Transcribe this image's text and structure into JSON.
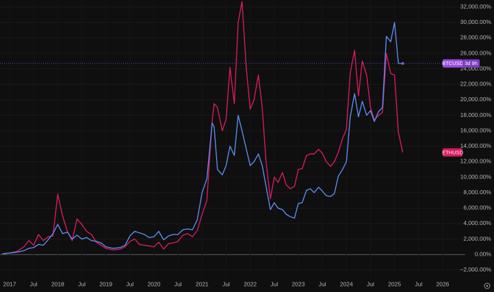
{
  "chart_data": {
    "type": "line",
    "x": [
      2016.85,
      2017.0,
      2017.15,
      2017.3,
      2017.4,
      2017.5,
      2017.6,
      2017.7,
      2017.8,
      2017.9,
      2018.0,
      2018.1,
      2018.2,
      2018.3,
      2018.4,
      2018.5,
      2018.6,
      2018.7,
      2018.8,
      2018.9,
      2019.0,
      2019.15,
      2019.3,
      2019.4,
      2019.5,
      2019.6,
      2019.7,
      2019.8,
      2019.9,
      2020.0,
      2020.1,
      2020.2,
      2020.3,
      2020.4,
      2020.5,
      2020.6,
      2020.7,
      2020.8,
      2020.9,
      2021.0,
      2021.1,
      2021.21,
      2021.25,
      2021.32,
      2021.42,
      2021.5,
      2021.58,
      2021.67,
      2021.75,
      2021.83,
      2021.92,
      2022.0,
      2022.08,
      2022.17,
      2022.25,
      2022.33,
      2022.42,
      2022.5,
      2022.58,
      2022.67,
      2022.75,
      2022.83,
      2022.92,
      2023.0,
      2023.08,
      2023.17,
      2023.25,
      2023.33,
      2023.42,
      2023.5,
      2023.58,
      2023.67,
      2023.75,
      2023.83,
      2023.92,
      2024.0,
      2024.08,
      2024.17,
      2024.25,
      2024.33,
      2024.42,
      2024.5,
      2024.58,
      2024.67,
      2024.75,
      2024.83,
      2024.92,
      2025.0,
      2025.08,
      2025.17
    ],
    "series": [
      {
        "name": "BTCUSD",
        "color": "#5b8def",
        "label_color": "#9b4de0",
        "countdown": "3d 9h",
        "values": [
          100,
          200,
          300,
          500,
          800,
          900,
          1300,
          1200,
          1900,
          2700,
          3900,
          2700,
          2900,
          2000,
          2500,
          2000,
          2200,
          1800,
          1700,
          1500,
          1000,
          800,
          900,
          1200,
          2400,
          3000,
          2800,
          2600,
          2200,
          2300,
          3000,
          1900,
          2400,
          2600,
          2600,
          3200,
          3300,
          3200,
          4500,
          8000,
          9800,
          17000,
          16500,
          11000,
          10300,
          11500,
          14000,
          12800,
          18000,
          16000,
          13600,
          11500,
          12000,
          13000,
          11500,
          8800,
          5800,
          6700,
          6000,
          5800,
          5200,
          4900,
          4700,
          6600,
          6700,
          8300,
          8500,
          8000,
          8700,
          8200,
          7600,
          7500,
          7900,
          10100,
          11000,
          12000,
          17800,
          20800,
          17800,
          19800,
          18000,
          18600,
          17200,
          18500,
          19000,
          28200,
          27500,
          30000,
          24700,
          24700
        ]
      },
      {
        "name": "ETHUSD",
        "color": "#d81b60",
        "label_color": "#d81b60",
        "values": [
          100,
          200,
          400,
          1000,
          1800,
          1200,
          2600,
          1800,
          2300,
          2400,
          7800,
          5000,
          3000,
          1800,
          4600,
          3900,
          3000,
          2600,
          1600,
          1200,
          800,
          600,
          700,
          1000,
          1700,
          2000,
          1300,
          1200,
          1100,
          1000,
          1600,
          700,
          1400,
          1500,
          1700,
          2500,
          2700,
          2300,
          3100,
          5200,
          7000,
          17300,
          19500,
          19000,
          16000,
          17500,
          24200,
          19500,
          30000,
          32700,
          24000,
          18800,
          20000,
          23200,
          19000,
          12000,
          7200,
          10000,
          9300,
          10600,
          9000,
          8500,
          8800,
          11000,
          11100,
          12800,
          13000,
          13000,
          13600,
          13100,
          12000,
          11400,
          12000,
          13200,
          15000,
          16200,
          23500,
          26400,
          20500,
          25000,
          23200,
          19000,
          17400,
          18000,
          18400,
          26000,
          23400,
          23200,
          15800,
          13200
        ]
      }
    ],
    "xlim": [
      2016.8,
      2026.47
    ],
    "xticks": [
      2017,
      {
        "value": 2017.5,
        "label": "Jul"
      },
      2018,
      {
        "value": 2018.5,
        "label": "Jul"
      },
      2019,
      {
        "value": 2019.5,
        "label": "Jul"
      },
      2020,
      {
        "value": 2020.5,
        "label": "Jul"
      },
      2021,
      {
        "value": 2021.5,
        "label": "Jul"
      },
      2022,
      {
        "value": 2022.5,
        "label": "Jul"
      },
      2023,
      {
        "value": 2023.5,
        "label": "Jul"
      },
      2024,
      {
        "value": 2024.5,
        "label": "Jul"
      },
      2025,
      {
        "value": 2025.5,
        "label": "Jul"
      },
      2026
    ],
    "ylim": [
      -2900,
      32900
    ],
    "yticks": [
      {
        "value": -2000,
        "label": "−2,000.00%"
      },
      {
        "value": 0,
        "label": "0.00%"
      },
      {
        "value": 2000,
        "label": "2,000.00%"
      },
      {
        "value": 4000,
        "label": "4,000.00%"
      },
      {
        "value": 6000,
        "label": "6,000.00%"
      },
      {
        "value": 8000,
        "label": "8,000.00%"
      },
      {
        "value": 10000,
        "label": "10,000.00%"
      },
      {
        "value": 12000,
        "label": "12,000.00%"
      },
      {
        "value": 14000,
        "label": "14,000.00%"
      },
      {
        "value": 16000,
        "label": "16,000.00%"
      },
      {
        "value": 18000,
        "label": "18,000.00%"
      },
      {
        "value": 20000,
        "label": "20,000.00%"
      },
      {
        "value": 22000,
        "label": "22,000.00%"
      },
      {
        "value": 24000,
        "label": "24,000.00%"
      },
      {
        "value": 26000,
        "label": "26,000.00%"
      },
      {
        "value": 28000,
        "label": "28,000.00%"
      },
      {
        "value": 30000,
        "label": "30,000.00%"
      },
      {
        "value": 32000,
        "label": "32,000.00%"
      }
    ],
    "grid": true
  }
}
